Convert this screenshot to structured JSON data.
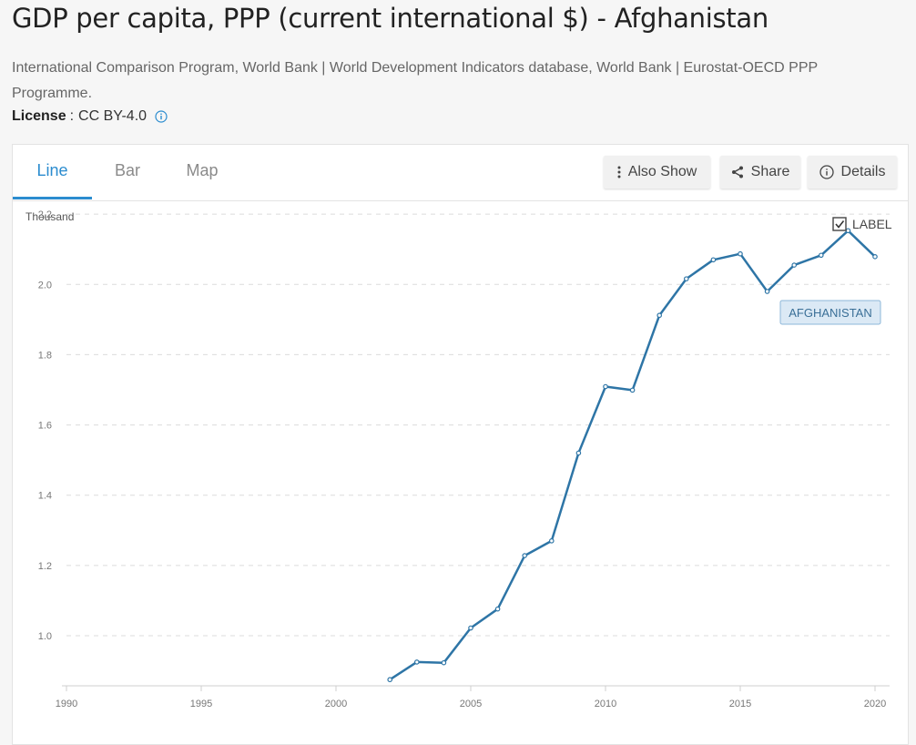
{
  "header": {
    "title": "GDP per capita, PPP (current international $) - Afghanistan",
    "sources": "International Comparison Program, World Bank | World Development Indicators database, World Bank | Eurostat-OECD PPP Programme.",
    "license_label": "License",
    "license_sep": ":",
    "license_value": "CC BY-4.0"
  },
  "tabs": [
    {
      "label": "Line",
      "active": true
    },
    {
      "label": "Bar",
      "active": false
    },
    {
      "label": "Map",
      "active": false
    }
  ],
  "toolbar": {
    "also_show": "Also Show",
    "share": "Share",
    "details": "Details"
  },
  "label_toggle": "LABEL",
  "colors": {
    "line": "#2e75a6",
    "active_tab": "#2b8ccf",
    "tag_bg": "#dbe9f5",
    "tag_border": "#8db7d9"
  },
  "chart_data": {
    "type": "line",
    "unit_label": "Thousand",
    "xlim": [
      1990,
      2020
    ],
    "ylim": [
      0.86,
      2.26
    ],
    "x_ticks": [
      1990,
      1995,
      2000,
      2005,
      2010,
      2015,
      2020
    ],
    "y_ticks": [
      1.0,
      1.2,
      1.4,
      1.6,
      1.8,
      2.0,
      2.2
    ],
    "y_tick_labels": [
      "1.0",
      "1.2",
      "1.4",
      "1.6",
      "1.8",
      "2.0",
      "2.2"
    ],
    "grid": true,
    "series": [
      {
        "name": "AFGHANISTAN",
        "x": [
          2002,
          2003,
          2004,
          2005,
          2006,
          2007,
          2008,
          2009,
          2010,
          2011,
          2012,
          2013,
          2014,
          2015,
          2016,
          2017,
          2018,
          2019,
          2020
        ],
        "values": [
          0.875,
          0.925,
          0.923,
          1.022,
          1.076,
          1.228,
          1.27,
          1.52,
          1.709,
          1.699,
          1.912,
          2.016,
          2.07,
          2.087,
          1.98,
          2.055,
          2.083,
          2.153,
          2.079
        ]
      }
    ]
  }
}
